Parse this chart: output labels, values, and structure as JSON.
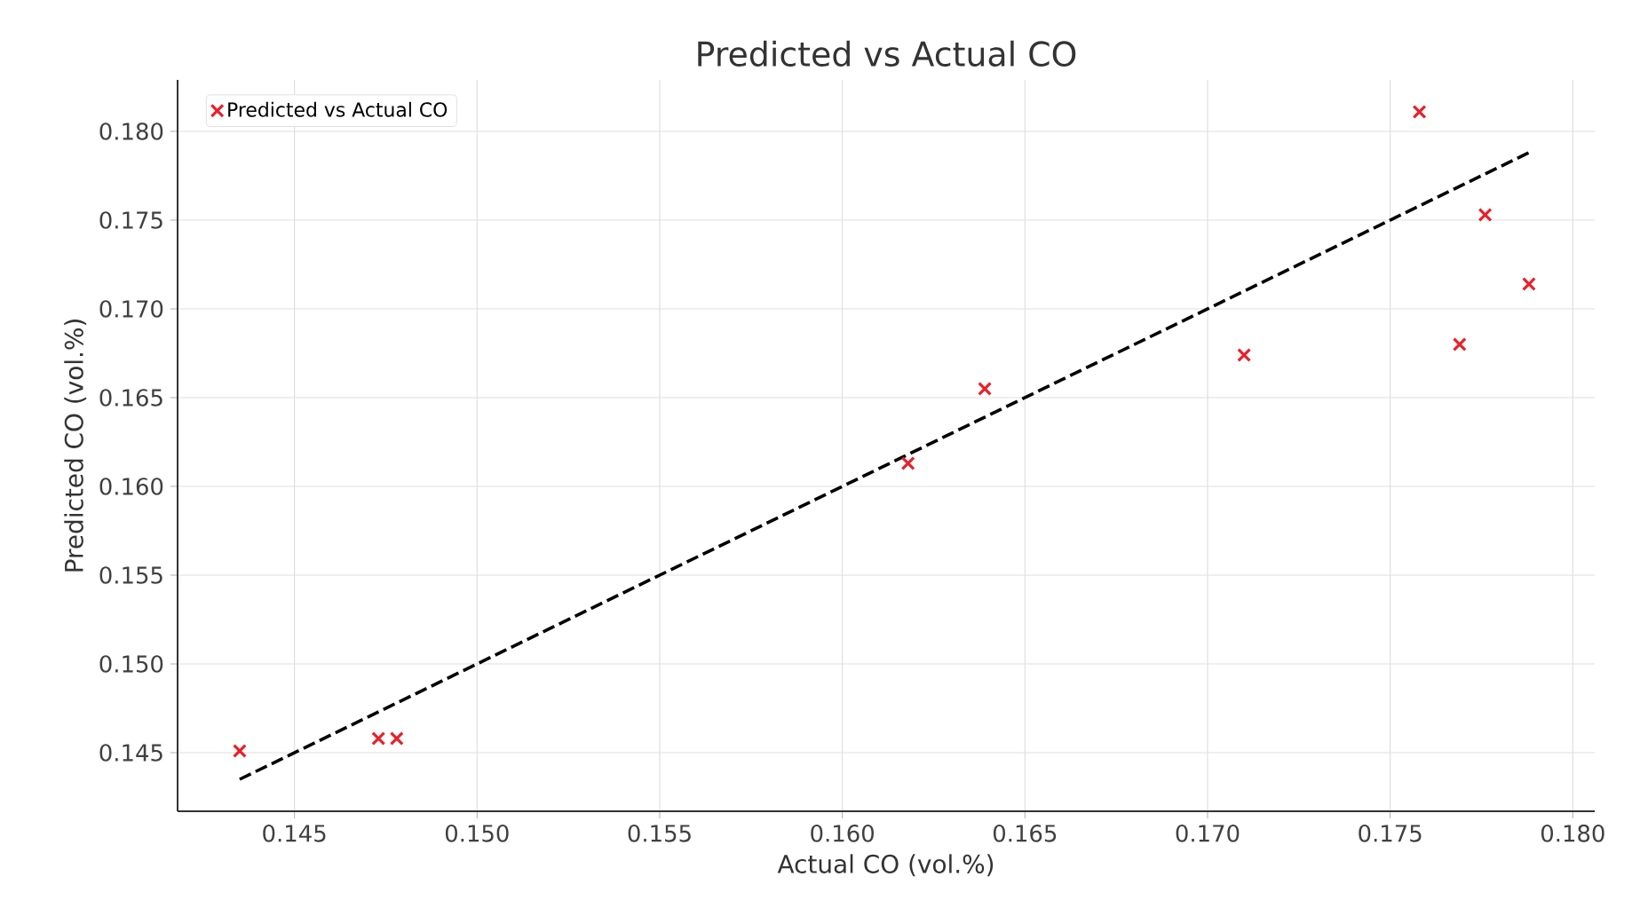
{
  "chart_data": {
    "type": "scatter",
    "title": "Predicted vs Actual CO",
    "xlabel": "Actual CO (vol.%)",
    "ylabel": "Predicted CO (vol.%)",
    "series": [
      {
        "name": "Predicted vs Actual CO",
        "color": "#e8202a",
        "marker": "cross",
        "x": [
          0.1435,
          0.1473,
          0.1478,
          0.1618,
          0.1639,
          0.171,
          0.1758,
          0.1776,
          0.1769,
          0.1788
        ],
        "values": [
          0.1451,
          0.1458,
          0.1458,
          0.1613,
          0.1655,
          0.1674,
          0.1811,
          0.1753,
          0.168,
          0.1714
        ]
      },
      {
        "type": "line",
        "color": "#000000",
        "line_style": "dashed",
        "marker": "none",
        "x": [
          0.1435,
          0.1788
        ],
        "values": [
          0.1435,
          0.1788
        ]
      }
    ],
    "xlim": [
      0.1418,
      0.1806
    ],
    "ylim": [
      0.1417,
      0.1829
    ],
    "xticks": [
      {
        "value": 0.145,
        "label": "0.145"
      },
      {
        "value": 0.15,
        "label": "0.150"
      },
      {
        "value": 0.155,
        "label": "0.155"
      },
      {
        "value": 0.16,
        "label": "0.160"
      },
      {
        "value": 0.165,
        "label": "0.165"
      },
      {
        "value": 0.17,
        "label": "0.170"
      },
      {
        "value": 0.175,
        "label": "0.175"
      },
      {
        "value": 0.18,
        "label": "0.180"
      }
    ],
    "yticks": [
      {
        "value": 0.145,
        "label": "0.145"
      },
      {
        "value": 0.15,
        "label": "0.150"
      },
      {
        "value": 0.155,
        "label": "0.155"
      },
      {
        "value": 0.16,
        "label": "0.160"
      },
      {
        "value": 0.165,
        "label": "0.165"
      },
      {
        "value": 0.17,
        "label": "0.170"
      },
      {
        "value": 0.175,
        "label": "0.175"
      },
      {
        "value": 0.18,
        "label": "0.180"
      }
    ],
    "grid": true,
    "legend": "top left"
  }
}
